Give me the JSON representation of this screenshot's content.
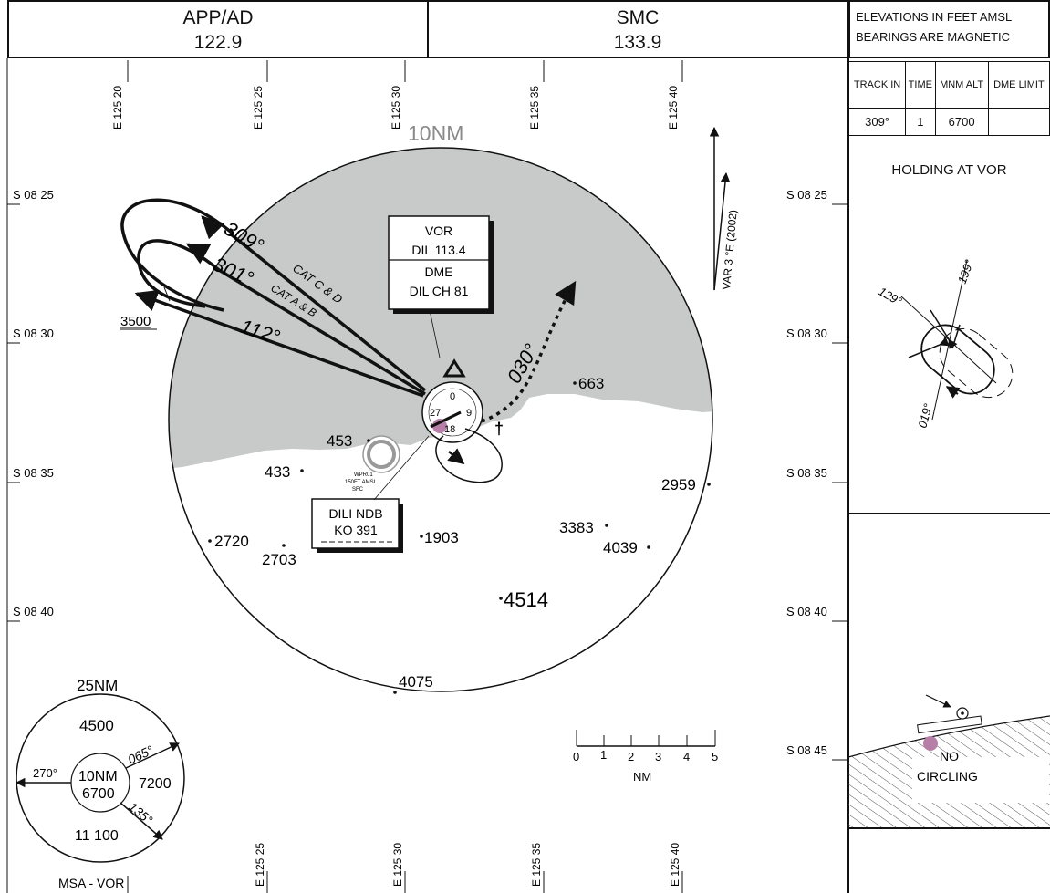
{
  "header": {
    "app_name": "APP/AD",
    "app_freq": "122.9",
    "smc_name": "SMC",
    "smc_freq": "133.9"
  },
  "notes": {
    "line1": "ELEVATIONS IN FEET AMSL",
    "line2": "BEARINGS ARE MAGNETIC"
  },
  "holding_table": {
    "col1": "TRACK IN",
    "col2": "TIME",
    "col3": "MNM ALT",
    "col4": "DME LIMIT",
    "track": "309°",
    "time": "1",
    "alt": "6700",
    "dme": ""
  },
  "holding_title": "HOLDING AT VOR",
  "holding_diagram": {
    "b1": "129°",
    "b2": "199°",
    "b3": "019°"
  },
  "grid": {
    "top_lon": [
      "E 125 20",
      "E 125 25",
      "E 125 30",
      "E 125 35",
      "E 125 40"
    ],
    "bottom_lon": [
      "E 125 25",
      "E 125 30",
      "E 125 35",
      "E 125 40"
    ],
    "lat_left": [
      "S 08 25",
      "S 08 30",
      "S 08 35",
      "S 08 40"
    ],
    "lat_right": [
      "S 08 25",
      "S 08 30",
      "S 08 35",
      "S 08 40",
      "S 08 45"
    ]
  },
  "map": {
    "radius_label": "10NM",
    "var_label": "VAR 3 °E (2002)",
    "vor_box": [
      "VOR",
      "DIL 113.4",
      "DME",
      "DIL CH 81"
    ],
    "ndb_box": [
      "DILI NDB",
      "KO 391"
    ],
    "restricted": [
      "WPR01",
      "150FT AMSL",
      "SFC"
    ],
    "track_309": "309°",
    "track_301": "301°",
    "track_112": "112°",
    "track_030": "030°",
    "cat_cd": "CAT C & D",
    "cat_ab": "CAT A & B",
    "alt_3500": "3500",
    "rose": {
      "n": "0",
      "e": "9",
      "s": "18",
      "w": "27"
    },
    "elevations": [
      "663",
      "453",
      "433",
      "2959",
      "2720",
      "2703",
      "1903",
      "3383",
      "4039",
      "4514",
      "4075"
    ]
  },
  "scale": {
    "ticks": [
      "0",
      "1",
      "2",
      "3",
      "4",
      "5"
    ],
    "unit": "NM"
  },
  "msa": {
    "outer": "25NM",
    "inner": "10NM",
    "inner_alt": "6700",
    "n_alt": "4500",
    "e_alt": "7200",
    "s_alt": "11 100",
    "b270": "270°",
    "b065": "065°",
    "b135": "135°",
    "title": "MSA - VOR"
  },
  "aerodrome": {
    "line1": "NO",
    "line2": "CIRCLING"
  },
  "colors": {
    "terrain": "#c8c9c9",
    "ink": "#111111",
    "airport": "#b77fa8"
  }
}
